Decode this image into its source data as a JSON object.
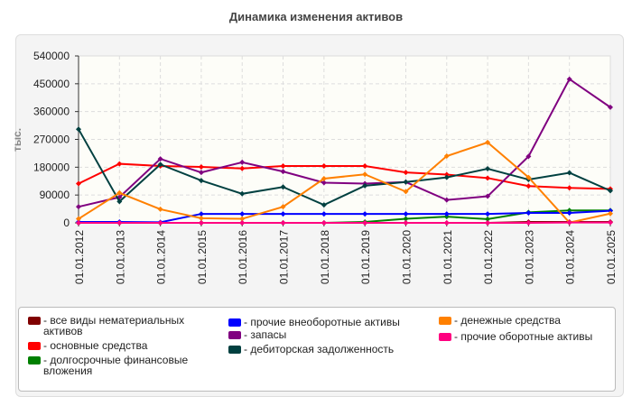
{
  "chart_data": {
    "type": "line",
    "title": "Динамика изменения активов",
    "ylabel": "тыс.",
    "xlabel": "",
    "ylim": [
      0,
      540000
    ],
    "yticks": [
      "0",
      "90000",
      "180000",
      "270000",
      "360000",
      "450000",
      "540000"
    ],
    "grid": true,
    "legend_position": "bottom",
    "categories": [
      "01.01.2012",
      "01.01.2013",
      "01.01.2014",
      "01.01.2015",
      "01.01.2016",
      "01.01.2017",
      "01.01.2018",
      "01.01.2019",
      "01.01.2020",
      "01.01.2021",
      "01.01.2022",
      "01.01.2023",
      "01.01.2024",
      "01.01.2025"
    ],
    "series": [
      {
        "name": "все виды нематериальных активов",
        "color": "#800000",
        "values": [
          0,
          0,
          0,
          0,
          0,
          0,
          0,
          0,
          0,
          0,
          0,
          3000,
          3000,
          3000
        ]
      },
      {
        "name": "основные средства",
        "color": "#ff0000",
        "values": [
          127000,
          191000,
          184000,
          181000,
          176000,
          184000,
          184000,
          184000,
          163000,
          156000,
          145000,
          119000,
          113000,
          110000
        ]
      },
      {
        "name": "долгосрочные финансовые вложения",
        "color": "#008000",
        "values": [
          0,
          0,
          0,
          0,
          0,
          0,
          0,
          3000,
          13000,
          20000,
          12000,
          34000,
          40000,
          40000
        ]
      },
      {
        "name": "прочие внеоборотные активы",
        "color": "#0000ff",
        "values": [
          3000,
          3000,
          2000,
          29000,
          29000,
          29000,
          29000,
          29000,
          29000,
          29000,
          29000,
          32000,
          32000,
          39000
        ]
      },
      {
        "name": "запасы",
        "color": "#800080",
        "values": [
          52000,
          83000,
          207000,
          163000,
          196000,
          166000,
          130000,
          127000,
          132000,
          74000,
          86000,
          215000,
          465000,
          374000
        ]
      },
      {
        "name": "дебиторская задолженность",
        "color": "#004040",
        "values": [
          303000,
          69000,
          189000,
          137000,
          94000,
          116000,
          58000,
          120000,
          132000,
          147000,
          175000,
          140000,
          162000,
          104000
        ]
      },
      {
        "name": "денежные средства",
        "color": "#ff8000",
        "values": [
          13000,
          97000,
          44000,
          15000,
          13000,
          52000,
          143000,
          157000,
          101000,
          216000,
          260000,
          147000,
          1000,
          30000
        ]
      },
      {
        "name": "прочие оборотные активы",
        "color": "#ff0080",
        "values": [
          0,
          0,
          0,
          0,
          0,
          0,
          0,
          0,
          0,
          0,
          0,
          0,
          1000,
          1000
        ]
      }
    ]
  }
}
